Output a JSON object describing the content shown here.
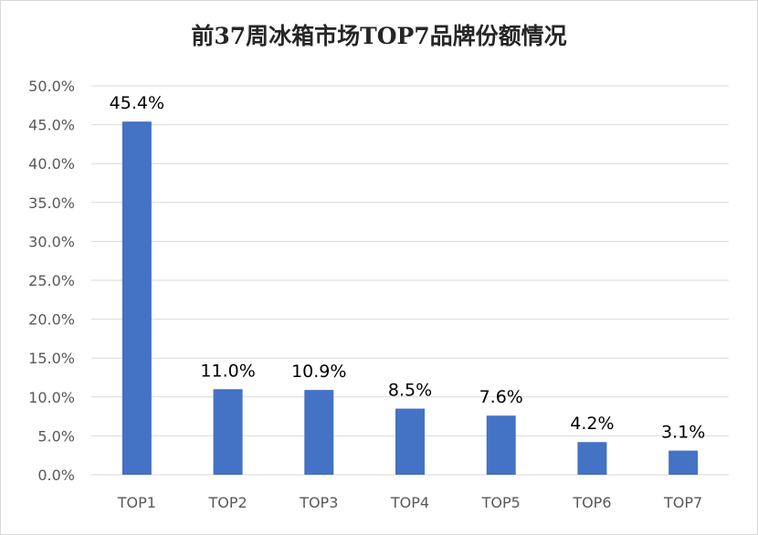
{
  "chart_data": {
    "type": "bar",
    "title": "前37周冰箱市场TOP7品牌份额情况",
    "categories": [
      "TOP1",
      "TOP2",
      "TOP3",
      "TOP4",
      "TOP5",
      "TOP6",
      "TOP7"
    ],
    "values": [
      45.4,
      11.0,
      10.9,
      8.5,
      7.6,
      4.2,
      3.1
    ],
    "data_labels": [
      "45.4%",
      "11.0%",
      "10.9%",
      "8.5%",
      "7.6%",
      "4.2%",
      "3.1%"
    ],
    "y_ticks": [
      "0.0%",
      "5.0%",
      "10.0%",
      "15.0%",
      "20.0%",
      "25.0%",
      "30.0%",
      "35.0%",
      "40.0%",
      "45.0%",
      "50.0%"
    ],
    "ylim": [
      0,
      50
    ],
    "ytick_step": 5,
    "grid": true,
    "legend": "none",
    "bar_color": "#4472c4"
  }
}
